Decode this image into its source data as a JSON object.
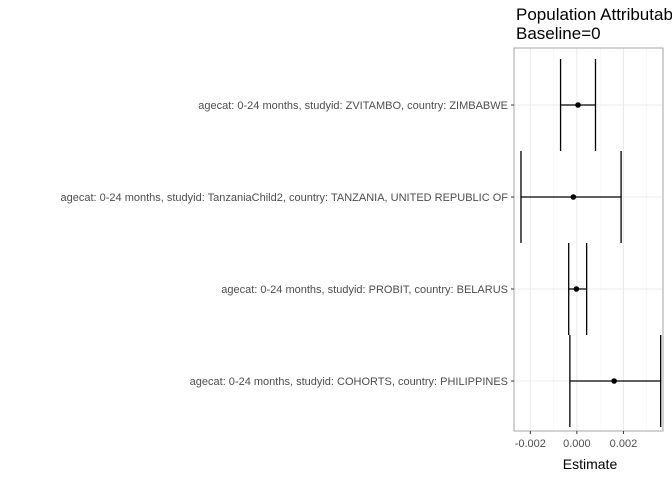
{
  "chart_data": {
    "type": "forest",
    "title_lines": [
      "Population Attributable",
      "Baseline=0"
    ],
    "xlabel": "Estimate",
    "xlim": [
      -0.0027,
      0.0037
    ],
    "xticks": [
      -0.002,
      0.0,
      0.002
    ],
    "xtick_labels": [
      "-0.002",
      "0.000",
      "0.002"
    ],
    "categories": [
      "agecat: 0-24 months, studyid: ZVITAMBO, country: ZIMBABWE",
      "agecat: 0-24 months, studyid: TanzaniaChild2, country: TANZANIA, UNITED REPUBLIC OF",
      "agecat: 0-24 months, studyid: PROBIT, country: BELARUS",
      "agecat: 0-24 months, studyid: COHORTS, country: PHILIPPINES"
    ],
    "estimates": [
      5e-05,
      -0.00015,
      -2e-05,
      0.0016
    ],
    "ci_lower": [
      -0.0007,
      -0.0024,
      -0.00035,
      -0.0003
    ],
    "ci_upper": [
      0.0008,
      0.0019,
      0.00042,
      0.0036
    ],
    "grid": true,
    "colors": {
      "panel_border": "#a6a6a6",
      "grid_major": "#ebebeb",
      "grid_minor": "#f5f5f5",
      "marks": "#000000",
      "tick_text": "#4d4d4d"
    }
  }
}
